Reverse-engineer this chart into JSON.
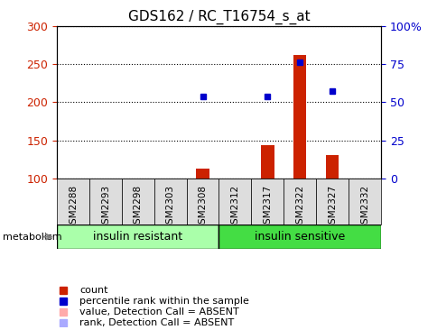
{
  "title": "GDS162 / RC_T16754_s_at",
  "samples": [
    "GSM2288",
    "GSM2293",
    "GSM2298",
    "GSM2303",
    "GSM2308",
    "GSM2312",
    "GSM2317",
    "GSM2322",
    "GSM2327",
    "GSM2332"
  ],
  "bar_values": [
    null,
    null,
    null,
    null,
    113,
    null,
    143,
    262,
    130,
    null
  ],
  "bar_absent_values": [
    null,
    null,
    null,
    null,
    null,
    null,
    null,
    null,
    null,
    null
  ],
  "rank_values": [
    null,
    null,
    null,
    null,
    208,
    null,
    208,
    253,
    215,
    null
  ],
  "rank_absent_values": [
    null,
    null,
    null,
    null,
    null,
    null,
    null,
    null,
    null,
    null
  ],
  "ylim": [
    100,
    300
  ],
  "y2lim": [
    0,
    100
  ],
  "yticks": [
    100,
    150,
    200,
    250,
    300
  ],
  "y2ticks": [
    0,
    25,
    50,
    75,
    100
  ],
  "y2ticklabels": [
    "0",
    "25",
    "50",
    "75",
    "100%"
  ],
  "bar_color": "#cc2200",
  "bar_absent_color": "#ffaaaa",
  "rank_color": "#0000cc",
  "rank_absent_color": "#aaaaff",
  "group1_label": "insulin resistant",
  "group2_label": "insulin sensitive",
  "group1_color": "#aaffaa",
  "group2_color": "#44dd44",
  "group1_indices": [
    0,
    1,
    2,
    3,
    4
  ],
  "group2_indices": [
    5,
    6,
    7,
    8,
    9
  ],
  "metabolism_label": "metabolism",
  "bg_color": "#ffffff",
  "plot_bg_color": "#ffffff",
  "tick_label_color_left": "#cc2200",
  "tick_label_color_right": "#0000cc",
  "grid_color": "#000000",
  "bar_width": 0.4,
  "label_box_color": "#dddddd",
  "legend_items": [
    {
      "label": "count",
      "color": "#cc2200",
      "marker": "s"
    },
    {
      "label": "percentile rank within the sample",
      "color": "#0000cc",
      "marker": "s"
    },
    {
      "label": "value, Detection Call = ABSENT",
      "color": "#ffaaaa",
      "marker": "s"
    },
    {
      "label": "rank, Detection Call = ABSENT",
      "color": "#aaaaff",
      "marker": "s"
    }
  ]
}
